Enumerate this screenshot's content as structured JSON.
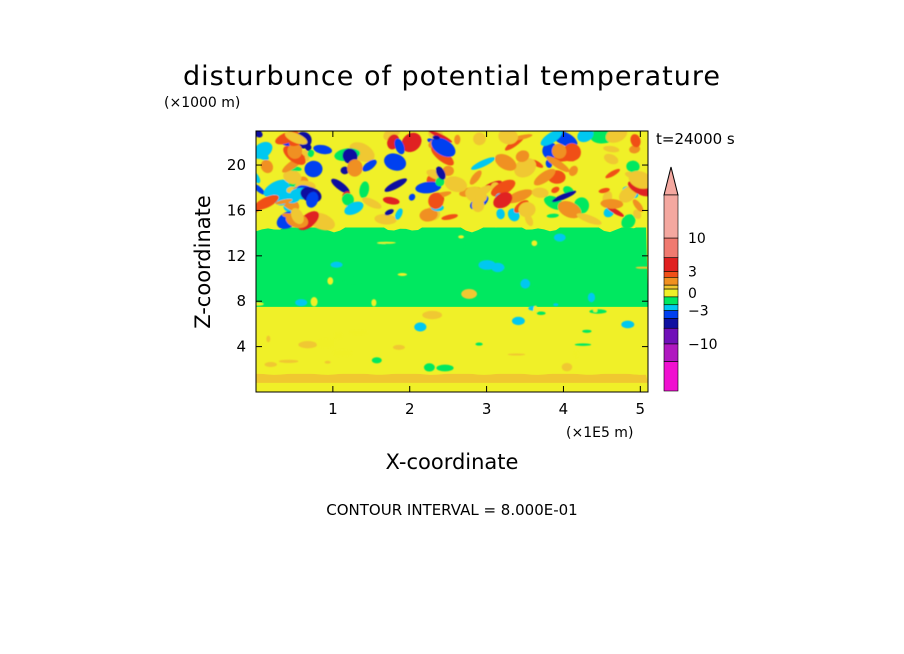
{
  "chart_data": {
    "type": "heatmap",
    "title": "disturbunce of potential temperature",
    "xlabel": "X-coordinate",
    "ylabel": "Z-coordinate",
    "x_unit": "(×1E5 m)",
    "y_unit": "(×1000 m)",
    "time_label": "t=24000 s",
    "note": "CONTOUR INTERVAL = 8.000E-01",
    "xlim": [
      0,
      5.1
    ],
    "ylim": [
      0,
      23
    ],
    "x_ticks": [
      "1",
      "2",
      "3",
      "4",
      "5"
    ],
    "x_tick_values": [
      1,
      2,
      3,
      4,
      5
    ],
    "y_ticks": [
      "4",
      "8",
      "12",
      "16",
      "20"
    ],
    "y_tick_values": [
      4,
      8,
      12,
      16,
      20
    ],
    "colorbar": {
      "labels": [
        "10",
        "3",
        "0",
        "−3",
        "−10"
      ],
      "label_values": [
        10,
        3,
        0,
        -3,
        -10
      ],
      "colors_top_to_bottom": [
        "#f4a8a0",
        "#f07a70",
        "#e02020",
        "#f05018",
        "#f09020",
        "#f0c830",
        "#f0f028",
        "#00e860",
        "#00c8f0",
        "#0040f0",
        "#1010a0",
        "#7010b8",
        "#b018c0",
        "#f010d0"
      ]
    },
    "layers": [
      {
        "z_range": [
          0.0,
          0.8
        ],
        "color": "#f0f028",
        "description_value": "0 to 0.8"
      },
      {
        "z_range": [
          0.8,
          1.6
        ],
        "color": "#f0c830",
        "description_value": "0.8 to 1.6"
      },
      {
        "z_range": [
          1.6,
          7.5
        ],
        "color": "#f0f028",
        "description_value": "0 to 0.8"
      },
      {
        "z_range": [
          7.5,
          14.5
        ],
        "color": "#00e860",
        "description_value": "-0.8 to 0"
      },
      {
        "z_range": [
          14.5,
          23
        ],
        "color": "#f0f028",
        "description_value": "mixed -3 to 3"
      }
    ]
  }
}
